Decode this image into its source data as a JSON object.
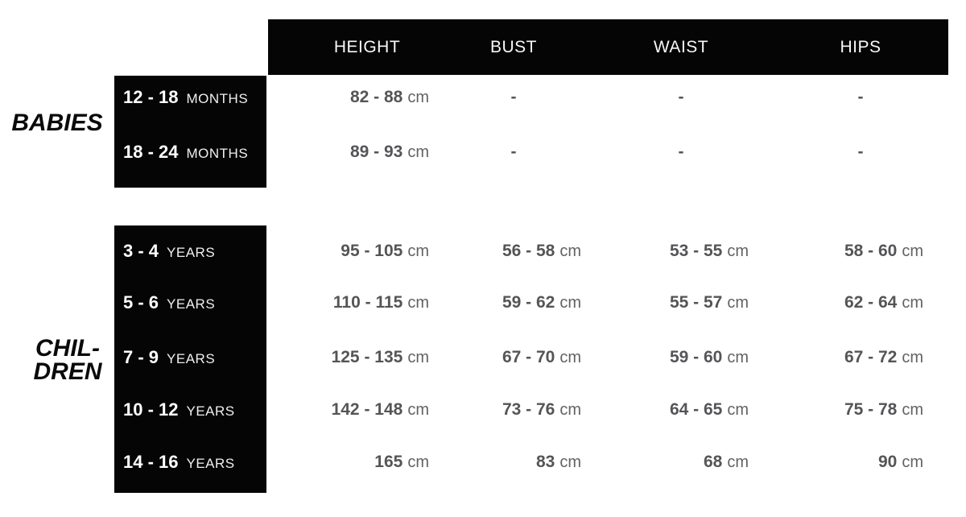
{
  "columns": [
    "HEIGHT",
    "BUST",
    "WAIST",
    "HIPS"
  ],
  "groups": {
    "babies": {
      "label": "BABIES"
    },
    "children": {
      "line1": "CHIL-",
      "line2": "DREN"
    }
  },
  "rows": [
    {
      "age": "12 - 18",
      "age_unit": "MONTHS",
      "height": "82 - 88",
      "height_unit": "cm",
      "bust": "-",
      "bust_unit": "",
      "waist": "-",
      "waist_unit": "",
      "hips": "-",
      "hips_unit": ""
    },
    {
      "age": "18 - 24",
      "age_unit": "MONTHS",
      "height": "89 - 93",
      "height_unit": "cm",
      "bust": "-",
      "bust_unit": "",
      "waist": "-",
      "waist_unit": "",
      "hips": "-",
      "hips_unit": ""
    },
    {
      "age": "3 - 4",
      "age_unit": "YEARS",
      "height": "95 - 105",
      "height_unit": "cm",
      "bust": "56 - 58",
      "bust_unit": "cm",
      "waist": "53 - 55",
      "waist_unit": "cm",
      "hips": "58 - 60",
      "hips_unit": "cm"
    },
    {
      "age": "5 - 6",
      "age_unit": "YEARS",
      "height": "110 - 115",
      "height_unit": "cm",
      "bust": "59 - 62",
      "bust_unit": "cm",
      "waist": "55 - 57",
      "waist_unit": "cm",
      "hips": "62 - 64",
      "hips_unit": "cm"
    },
    {
      "age": "7 - 9",
      "age_unit": "YEARS",
      "height": "125 - 135",
      "height_unit": "cm",
      "bust": "67 - 70",
      "bust_unit": "cm",
      "waist": "59 - 60",
      "waist_unit": "cm",
      "hips": "67 - 72",
      "hips_unit": "cm"
    },
    {
      "age": "10 - 12",
      "age_unit": "YEARS",
      "height": "142 - 148",
      "height_unit": "cm",
      "bust": "73 - 76",
      "bust_unit": "cm",
      "waist": "64 - 65",
      "waist_unit": "cm",
      "hips": "75 - 78",
      "hips_unit": "cm"
    },
    {
      "age": "14 - 16",
      "age_unit": "YEARS",
      "height": "165",
      "height_unit": "cm",
      "bust": "83",
      "bust_unit": "cm",
      "waist": "68",
      "waist_unit": "cm",
      "hips": "90",
      "hips_unit": "cm"
    }
  ],
  "colors": {
    "box_black": "#050505",
    "value_gray": "#555558",
    "unit_gray": "#626266",
    "header_white": "#f7f7f7"
  },
  "chart_data": {
    "type": "table",
    "columns": [
      "GROUP",
      "AGE",
      "HEIGHT",
      "BUST",
      "WAIST",
      "HIPS"
    ],
    "rows": [
      [
        "BABIES",
        "12 - 18 MONTHS",
        "82 - 88 cm",
        "-",
        "-",
        "-"
      ],
      [
        "BABIES",
        "18 - 24 MONTHS",
        "89 - 93 cm",
        "-",
        "-",
        "-"
      ],
      [
        "CHILDREN",
        "3 - 4 YEARS",
        "95 - 105 cm",
        "56 - 58 cm",
        "53 - 55 cm",
        "58 - 60 cm"
      ],
      [
        "CHILDREN",
        "5 - 6 YEARS",
        "110 - 115 cm",
        "59 - 62 cm",
        "55 - 57 cm",
        "62 - 64 cm"
      ],
      [
        "CHILDREN",
        "7 - 9 YEARS",
        "125 - 135 cm",
        "67 - 70 cm",
        "59 - 60 cm",
        "67 - 72 cm"
      ],
      [
        "CHILDREN",
        "10 - 12 YEARS",
        "142 - 148 cm",
        "73 - 76 cm",
        "64 - 65 cm",
        "75 - 78 cm"
      ],
      [
        "CHILDREN",
        "14 - 16 YEARS",
        "165 cm",
        "83 cm",
        "68 cm",
        "90 cm"
      ]
    ]
  }
}
